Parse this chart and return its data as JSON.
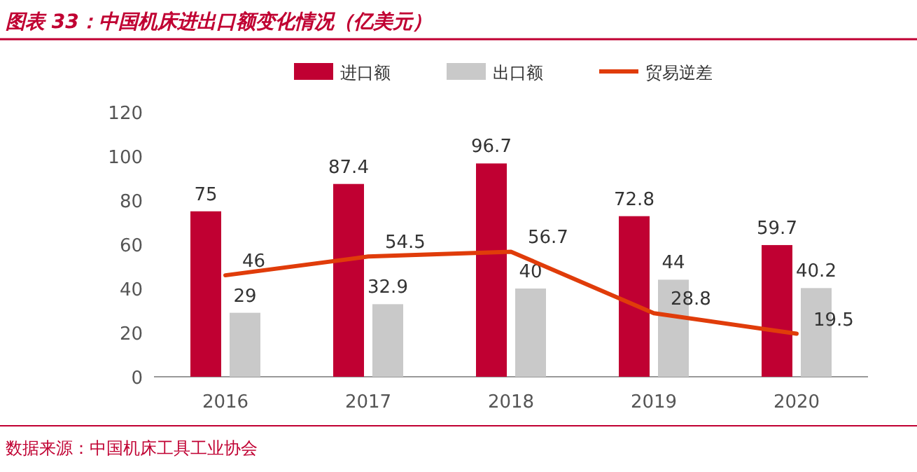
{
  "chart_data": {
    "type": "bar",
    "title": "图表 33：中国机床进出口额变化情况（亿美元）",
    "categories": [
      "2016",
      "2017",
      "2018",
      "2019",
      "2020"
    ],
    "series": [
      {
        "name": "进口额",
        "color": "#c00032",
        "values": [
          75,
          87.4,
          96.7,
          72.8,
          59.7
        ]
      },
      {
        "name": "出口额",
        "color": "#c9c9c9",
        "values": [
          29,
          32.9,
          40,
          44,
          40.2
        ]
      },
      {
        "name": "贸易逆差",
        "type": "line",
        "color": "#e03c0a",
        "values": [
          46,
          54.5,
          56.7,
          28.8,
          19.5
        ]
      }
    ],
    "ylim": [
      0,
      120
    ],
    "yticks": [
      0,
      20,
      40,
      60,
      80,
      100,
      120
    ],
    "grid": false,
    "legend": "top",
    "data_labels": true,
    "annotations": [
      "数据来源：中国机床工具工业协会"
    ]
  }
}
